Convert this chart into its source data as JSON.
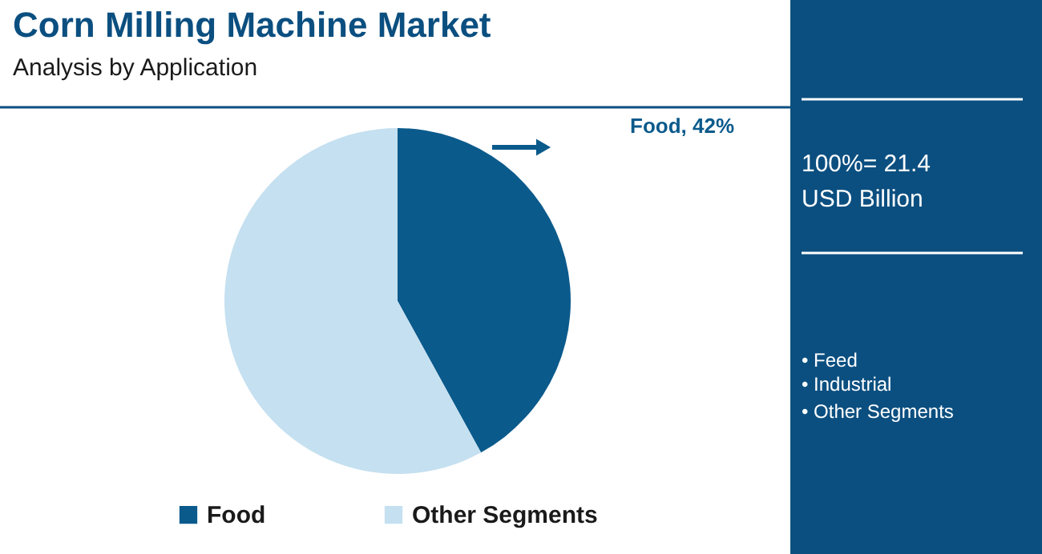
{
  "chart_data": {
    "type": "pie",
    "title": "Corn Milling Machine Market",
    "subtitle": "Analysis by Application",
    "categories": [
      "Food",
      "Other Segments"
    ],
    "values": [
      42,
      58
    ],
    "colors": [
      "#0b5a8c",
      "#c5e0f0"
    ],
    "value_labels": [
      "Food, 42%",
      null
    ],
    "legend": "bottom",
    "annotations": [
      "100%= 21.4",
      "USD Billion",
      "• Feed",
      "• Industrial",
      "• Other Segments"
    ]
  }
}
